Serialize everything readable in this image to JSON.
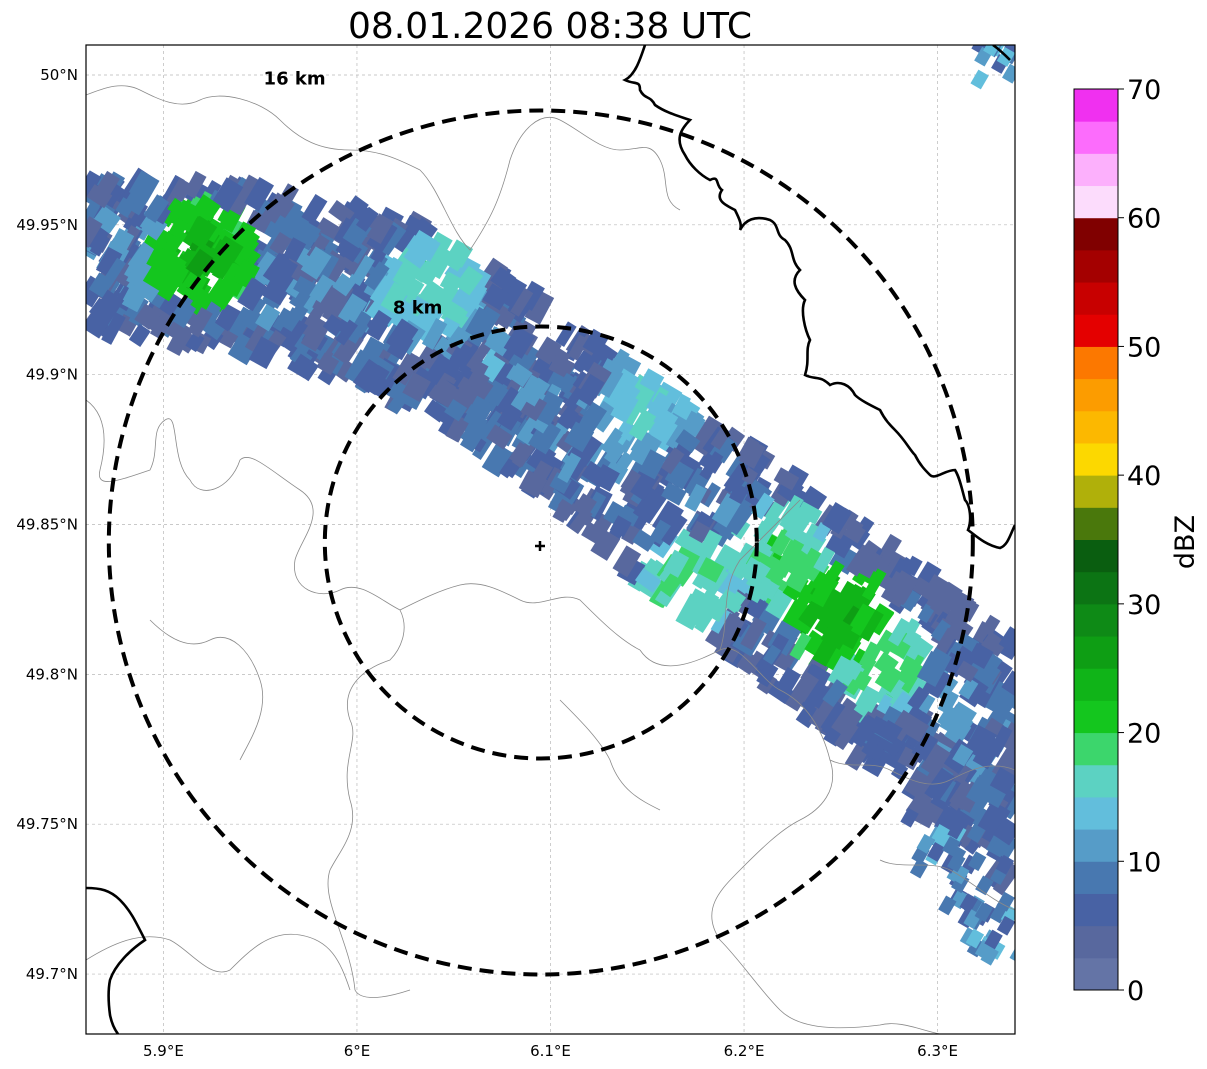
{
  "title": "08.01.2026 08:38 UTC",
  "x_ticks": [
    "5.9°E",
    "6°E",
    "6.1°E",
    "6.2°E",
    "6.3°E"
  ],
  "y_ticks": [
    "50°N",
    "49.95°N",
    "49.9°N",
    "49.85°N",
    "49.8°N",
    "49.75°N",
    "49.7°N"
  ],
  "rings": [
    {
      "label": "8 km",
      "radius_km": 8
    },
    {
      "label": "16 km",
      "radius_km": 16
    }
  ],
  "radar_site": {
    "lon": 6.095,
    "lat": 49.844,
    "marker": "plus"
  },
  "extent": {
    "lon_min": 5.86,
    "lon_max": 6.34,
    "lat_min": 49.68,
    "lat_max": 50.01
  },
  "colorbar": {
    "label": "dBZ",
    "min": 0,
    "max": 70,
    "tick_labels": [
      "0",
      "10",
      "20",
      "30",
      "40",
      "50",
      "60",
      "70"
    ],
    "colors": [
      "#6474a6",
      "#58689e",
      "#4862a4",
      "#4878b0",
      "#569cc8",
      "#62bedc",
      "#5cd2c2",
      "#3cd66c",
      "#14c61e",
      "#10b418",
      "#0e9e14",
      "#0e8a16",
      "#0c7414",
      "#0a5e10",
      "#4a780c",
      "#b0b00a",
      "#fcd800",
      "#fcb800",
      "#fc9c00",
      "#fc7800",
      "#e40000",
      "#c80000",
      "#a40000",
      "#800000",
      "#fcdcfc",
      "#fcb0fc",
      "#fc6cfc",
      "#f030f0"
    ]
  },
  "echo_band": {
    "description_free": true,
    "axis_points": [
      [
        5.86,
        49.94
      ],
      [
        5.95,
        49.935
      ],
      [
        6.03,
        49.92
      ],
      [
        6.1,
        49.89
      ],
      [
        6.18,
        49.85
      ],
      [
        6.24,
        49.82
      ],
      [
        6.3,
        49.79
      ],
      [
        6.34,
        49.77
      ]
    ],
    "half_width_lat": 0.035,
    "cells": [
      {
        "lon": 6.15,
        "lat": 49.89,
        "dbz": 15
      },
      {
        "lon": 6.04,
        "lat": 49.93,
        "dbz": 17
      },
      {
        "lon": 6.22,
        "lat": 49.84,
        "dbz": 19
      },
      {
        "lon": 6.25,
        "lat": 49.82,
        "dbz": 24
      },
      {
        "lon": 6.27,
        "lat": 49.805,
        "dbz": 19
      },
      {
        "lon": 6.17,
        "lat": 49.83,
        "dbz": 18
      },
      {
        "lon": 5.92,
        "lat": 49.94,
        "dbz": 24
      }
    ]
  }
}
